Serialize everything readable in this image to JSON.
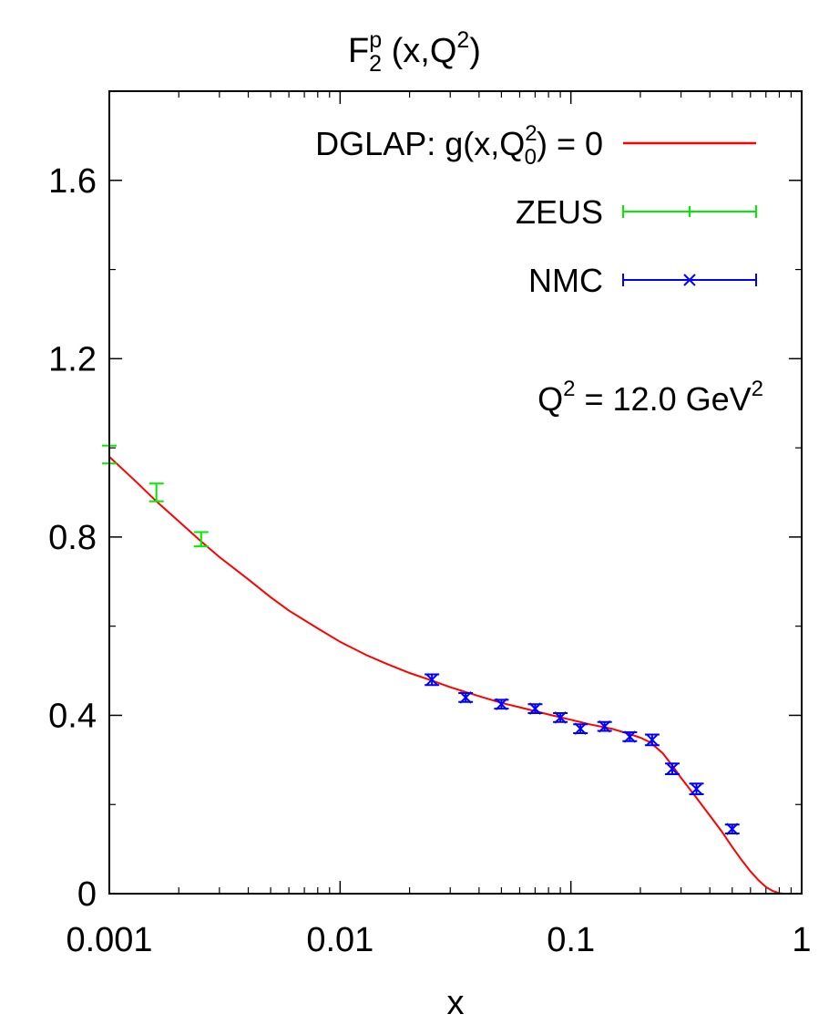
{
  "chart_data": {
    "type": "line",
    "title": {
      "base": "F",
      "sub": "2",
      "sup": "p",
      "rest": " (x,Q",
      "rest_sup": "2",
      "end": ")"
    },
    "xlabel": "x",
    "ylabel": "",
    "x_scale": "log",
    "xlim": [
      0.001,
      1
    ],
    "ylim": [
      0,
      1.8
    ],
    "x_ticks": [
      {
        "value": 0.001,
        "label": "0.001"
      },
      {
        "value": 0.01,
        "label": "0.01"
      },
      {
        "value": 0.1,
        "label": "0.1"
      },
      {
        "value": 1,
        "label": "1"
      }
    ],
    "y_ticks": [
      {
        "value": 0,
        "label": "0"
      },
      {
        "value": 0.4,
        "label": "0.4"
      },
      {
        "value": 0.8,
        "label": "0.8"
      },
      {
        "value": 1.2,
        "label": "1.2"
      },
      {
        "value": 1.6,
        "label": "1.6"
      }
    ],
    "grid": false,
    "legend_position": "top-right",
    "annotation": {
      "a": "Q",
      "a_sup": "2",
      "b": " = 12.0 GeV",
      "b_sup": "2"
    },
    "series": [
      {
        "name": "DGLAP: g(x,Q0^2) = 0",
        "legend_parts": {
          "a": "DGLAP: g(x,Q",
          "a_sub": "0",
          "a_sup": "2",
          "b": ") = 0"
        },
        "kind": "line",
        "color": "#ff0000",
        "points": [
          [
            0.001,
            0.98
          ],
          [
            0.0013,
            0.925
          ],
          [
            0.0016,
            0.88
          ],
          [
            0.002,
            0.835
          ],
          [
            0.0025,
            0.79
          ],
          [
            0.003,
            0.755
          ],
          [
            0.004,
            0.705
          ],
          [
            0.005,
            0.665
          ],
          [
            0.006,
            0.635
          ],
          [
            0.008,
            0.595
          ],
          [
            0.01,
            0.565
          ],
          [
            0.013,
            0.535
          ],
          [
            0.016,
            0.515
          ],
          [
            0.02,
            0.495
          ],
          [
            0.025,
            0.478
          ],
          [
            0.03,
            0.463
          ],
          [
            0.04,
            0.443
          ],
          [
            0.05,
            0.428
          ],
          [
            0.06,
            0.418
          ],
          [
            0.08,
            0.402
          ],
          [
            0.1,
            0.39
          ],
          [
            0.12,
            0.38
          ],
          [
            0.15,
            0.37
          ],
          [
            0.18,
            0.358
          ],
          [
            0.2,
            0.35
          ],
          [
            0.22,
            0.34
          ],
          [
            0.25,
            0.315
          ],
          [
            0.28,
            0.282
          ],
          [
            0.3,
            0.26
          ],
          [
            0.35,
            0.215
          ],
          [
            0.4,
            0.175
          ],
          [
            0.45,
            0.14
          ],
          [
            0.5,
            0.105
          ],
          [
            0.55,
            0.075
          ],
          [
            0.6,
            0.05
          ],
          [
            0.65,
            0.03
          ],
          [
            0.7,
            0.015
          ],
          [
            0.75,
            0.006
          ],
          [
            0.8,
            0.001
          ],
          [
            0.83,
            0.0
          ]
        ]
      },
      {
        "name": "ZEUS",
        "kind": "errorbar",
        "marker": "none",
        "color": "#00ee00",
        "points": [
          {
            "x": 0.001,
            "y": 0.985,
            "err": 0.02
          },
          {
            "x": 0.0016,
            "y": 0.9,
            "err": 0.02
          },
          {
            "x": 0.0025,
            "y": 0.795,
            "err": 0.016
          }
        ]
      },
      {
        "name": "NMC",
        "kind": "errorbar",
        "marker": "x",
        "color": "#0000ff",
        "points": [
          {
            "x": 0.025,
            "y": 0.48,
            "err": 0.012
          },
          {
            "x": 0.035,
            "y": 0.44,
            "err": 0.01
          },
          {
            "x": 0.05,
            "y": 0.425,
            "err": 0.01
          },
          {
            "x": 0.07,
            "y": 0.415,
            "err": 0.01
          },
          {
            "x": 0.09,
            "y": 0.395,
            "err": 0.01
          },
          {
            "x": 0.11,
            "y": 0.37,
            "err": 0.01
          },
          {
            "x": 0.14,
            "y": 0.375,
            "err": 0.01
          },
          {
            "x": 0.18,
            "y": 0.352,
            "err": 0.01
          },
          {
            "x": 0.225,
            "y": 0.345,
            "err": 0.012
          },
          {
            "x": 0.275,
            "y": 0.28,
            "err": 0.012
          },
          {
            "x": 0.35,
            "y": 0.235,
            "err": 0.012
          },
          {
            "x": 0.5,
            "y": 0.145,
            "err": 0.01
          }
        ]
      }
    ]
  }
}
